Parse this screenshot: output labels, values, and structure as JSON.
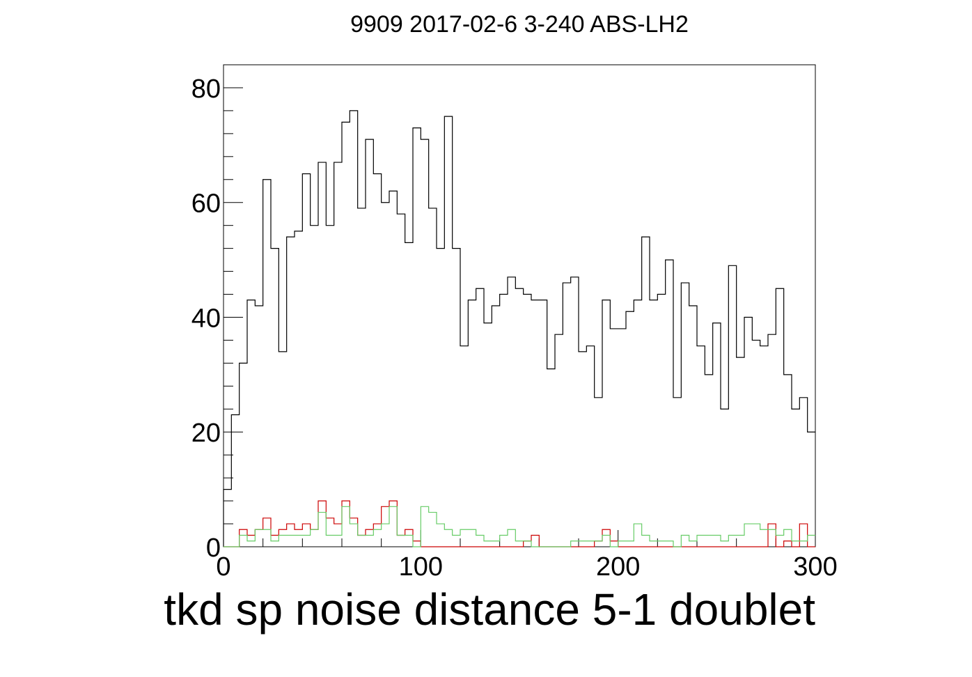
{
  "chart_data": {
    "type": "line",
    "title": "9909 2017-02-6 3-240 ABS-LH2",
    "xlabel": "tkd sp noise distance 5-1 doublet",
    "ylabel": "",
    "xlim": [
      0,
      300
    ],
    "ylim": [
      0,
      84
    ],
    "x_ticks": [
      0,
      100,
      200,
      300
    ],
    "y_ticks": [
      0,
      20,
      40,
      60,
      80
    ],
    "grid": false,
    "bin_edges_start": 0,
    "bin_width": 4,
    "series": [
      {
        "color": "#000000",
        "values": [
          10,
          23,
          32,
          43,
          42,
          64,
          52,
          34,
          54,
          55,
          65,
          56,
          67,
          56,
          67,
          74,
          76,
          59,
          71,
          65,
          60,
          62,
          58,
          53,
          73,
          71,
          59,
          52,
          75,
          52,
          35,
          43,
          45,
          39,
          42,
          44,
          47,
          45,
          44,
          43,
          43,
          31,
          37,
          46,
          47,
          34,
          35,
          26,
          43,
          38,
          38,
          41,
          43,
          54,
          43,
          44,
          50,
          26,
          46,
          42,
          35,
          30,
          39,
          24,
          49,
          33,
          40,
          36,
          35,
          37,
          45,
          30,
          24,
          26,
          20
        ]
      },
      {
        "color": "#cc0000",
        "values": [
          0,
          0,
          3,
          2,
          3,
          5,
          2,
          3,
          4,
          3,
          4,
          3,
          8,
          5,
          4,
          8,
          5,
          2,
          3,
          4,
          7,
          8,
          2,
          3,
          1,
          0,
          0,
          0,
          0,
          0,
          0,
          0,
          0,
          0,
          0,
          0,
          0,
          0,
          1,
          2,
          0,
          0,
          0,
          0,
          0,
          0,
          0,
          1,
          3,
          1,
          0,
          0,
          0,
          0,
          0,
          0,
          0,
          0,
          0,
          0,
          0,
          0,
          0,
          0,
          0,
          0,
          0,
          0,
          0,
          4,
          0,
          1,
          0,
          4,
          0
        ]
      },
      {
        "color": "#66cc66",
        "values": [
          0,
          0,
          2,
          1,
          3,
          3,
          1,
          2,
          2,
          2,
          2,
          3,
          6,
          2,
          2,
          7,
          4,
          2,
          2,
          3,
          4,
          7,
          2,
          2,
          0,
          7,
          6,
          4,
          3,
          2,
          3,
          3,
          2,
          1,
          1,
          2,
          3,
          1,
          1,
          0,
          0,
          0,
          0,
          0,
          1,
          1,
          1,
          1,
          2,
          0,
          1,
          1,
          4,
          2,
          1,
          1,
          1,
          0,
          2,
          1,
          2,
          2,
          2,
          1,
          2,
          2,
          4,
          4,
          3,
          3,
          2,
          3,
          1,
          1,
          2
        ]
      }
    ]
  }
}
